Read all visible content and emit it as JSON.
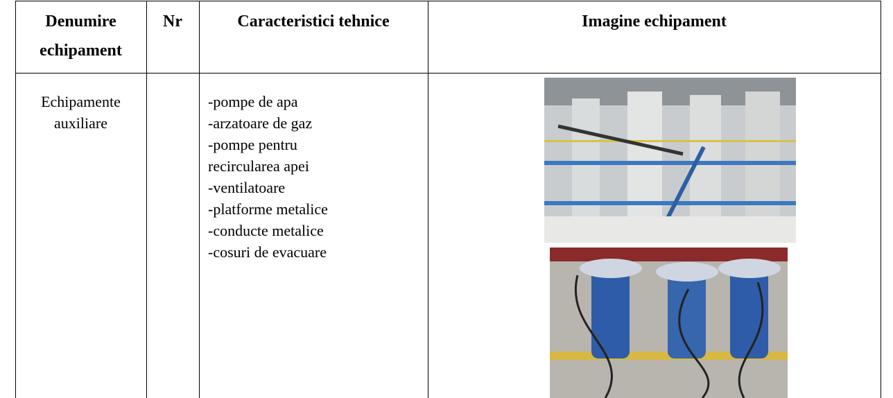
{
  "table": {
    "headers": [
      "Denumire echipament",
      "Nr",
      "Caracteristici tehnice",
      "Imagine echipament"
    ],
    "rows": [
      {
        "name_lines": [
          "Echipamente",
          "auxiliare"
        ],
        "characteristics_lines": [
          "-pompe de apa",
          "-arzatoare de gaz",
          "-pompe pentru",
          "recircularea apei",
          "-ventilatoare",
          "-platforme metalice",
          "-conducte metalice",
          "-cosuri de evacuare"
        ]
      }
    ]
  }
}
